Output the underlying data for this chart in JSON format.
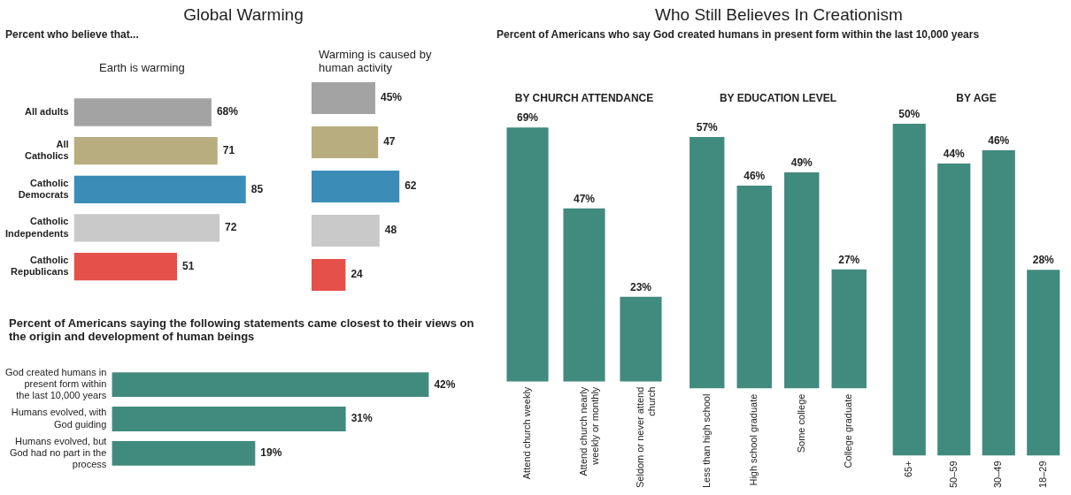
{
  "chart_data": [
    {
      "type": "other",
      "title": "Global Warming",
      "subtitle": "Percent who believe that..."
    },
    {
      "type": "bar",
      "orientation": "horizontal",
      "title": "Earth is warming",
      "tick_labels": "y",
      "categories": [
        "All adults",
        "All Catholics",
        "Catholic Democrats",
        "Catholic Independents",
        "Catholic Republicans"
      ],
      "values": [
        68,
        71,
        85,
        72,
        51
      ],
      "colors": [
        "#a3a3a3",
        "#b8ad7f",
        "#3b8db8",
        "#c9c9c9",
        "#e5504b"
      ],
      "value_labels": [
        "68%",
        "71",
        "85",
        "72",
        "51"
      ]
    },
    {
      "type": "bar",
      "orientation": "horizontal",
      "title": "Warming is caused by human activity",
      "tick_labels": false,
      "categories": [
        null,
        null,
        null,
        null,
        null
      ],
      "values": [
        45,
        47,
        62,
        48,
        24
      ],
      "colors": [
        "#a3a3a3",
        "#b8ad7f",
        "#3b8db8",
        "#c9c9c9",
        "#e5504b"
      ],
      "value_labels": [
        "45%",
        "47",
        "62",
        "48",
        "24"
      ]
    },
    {
      "type": "bar",
      "orientation": "horizontal",
      "title": "Percent of Americans saying the following statements came closest to their views on the origin and development of human beings",
      "tick_labels": "y",
      "categories": [
        "God created humans in present form within the last 10,000 years",
        "Humans evolved, with God guiding",
        "Humans evolved, but God had no part in the process"
      ],
      "values": [
        42,
        31,
        19
      ],
      "color": "#418a7e",
      "value_labels": [
        "42%",
        "31%",
        "19%"
      ]
    },
    {
      "type": "other",
      "title": "Who Still Believes In Creationism",
      "subtitle": "Percent of Americans who say God created humans in present form within the last 10,000 years"
    },
    {
      "type": "bar",
      "title": "BY CHURCH ATTENDANCE",
      "tick_labels": "x",
      "categories": [
        "Attend church weekly",
        "Attend church nearly weekly or monthly",
        "Seldom or never attend church"
      ],
      "values": [
        69,
        47,
        23
      ],
      "color": "#418a7e",
      "value_labels": [
        "69%",
        "47%",
        "23%"
      ]
    },
    {
      "type": "bar",
      "title": "BY EDUCATION LEVEL",
      "tick_labels": "x",
      "categories": [
        "Less than high school",
        "High school graduate",
        "Some college",
        "College graduate"
      ],
      "values": [
        57,
        46,
        49,
        27
      ],
      "color": "#418a7e",
      "value_labels": [
        "57%",
        "46%",
        "49%",
        "27%"
      ]
    },
    {
      "type": "bar",
      "title": "BY AGE",
      "tick_labels": "x",
      "categories": [
        "65+",
        "50–59",
        "30–49",
        "18–29"
      ],
      "values": [
        50,
        44,
        46,
        28
      ],
      "color": "#418a7e",
      "value_labels": [
        "50%",
        "44%",
        "46%",
        "28%"
      ]
    }
  ]
}
